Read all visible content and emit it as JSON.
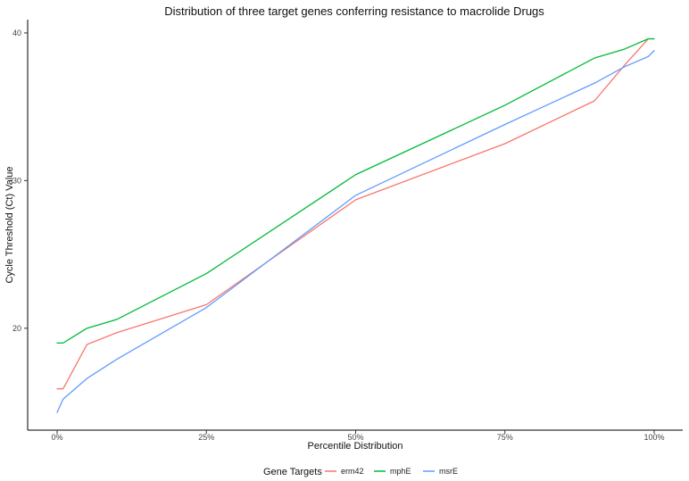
{
  "chart_data": {
    "type": "line",
    "title": "Distribution of three target genes conferring resistance to macrolide Drugs",
    "xlabel": "Percentile Distribution",
    "ylabel": "Cycle Threshold (Ct) Value",
    "xlim": [
      0,
      100
    ],
    "ylim": [
      13.1,
      40.9
    ],
    "x_ticks": [
      0,
      25,
      50,
      75,
      100
    ],
    "x_tick_labels": [
      "0%",
      "25%",
      "50%",
      "75%",
      "100%"
    ],
    "y_ticks": [
      20,
      30,
      40
    ],
    "y_tick_labels": [
      "20",
      "30",
      "40"
    ],
    "grid": false,
    "legend": {
      "title": "Gene Targets",
      "position": "bottom"
    },
    "series": [
      {
        "name": "erm42",
        "color": "#f8766d",
        "x": [
          0,
          1,
          5,
          10,
          25,
          50,
          75,
          90,
          95,
          99,
          100
        ],
        "y": [
          15.9,
          15.9,
          18.9,
          19.7,
          21.6,
          28.7,
          32.5,
          35.4,
          37.8,
          39.6,
          39.6
        ]
      },
      {
        "name": "mphE",
        "color": "#00ba38",
        "x": [
          0,
          1,
          5,
          10,
          25,
          50,
          75,
          90,
          95,
          99,
          100
        ],
        "y": [
          19.0,
          19.0,
          20.0,
          20.6,
          23.7,
          30.4,
          35.1,
          38.3,
          38.9,
          39.6,
          39.6
        ]
      },
      {
        "name": "msrE",
        "color": "#619cff",
        "x": [
          0,
          1,
          5,
          10,
          25,
          50,
          75,
          90,
          95,
          99,
          100
        ],
        "y": [
          14.3,
          15.2,
          16.6,
          17.9,
          21.4,
          29.0,
          33.8,
          36.6,
          37.7,
          38.4,
          38.8
        ]
      }
    ]
  }
}
